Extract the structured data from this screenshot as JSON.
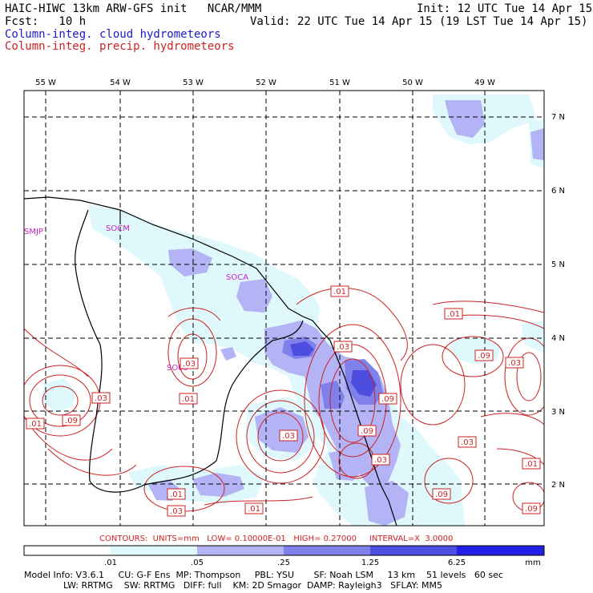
{
  "header": {
    "title": "HAIC-HIWC 13km ARW-GFS init   NCAR/MMM",
    "init": "Init: 12 UTC Tue 14 Apr 15",
    "fcst": "Fcst:   10 h",
    "valid": "Valid: 22 UTC Tue 14 Apr 15 (19 LST Tue 14 Apr 15)",
    "field1": "Column-integ. cloud hydrometeors",
    "field2": "Column-integ. precip. hydrometeors"
  },
  "colors": {
    "cloud": "#1a1acc",
    "precip": "#cc2222",
    "shade_01": "#dff8fc",
    "shade_05": "#b3b3f5",
    "shade_25": "#8080ea",
    "shade_125": "#4d4de0",
    "shade_625": "#2020e6"
  },
  "map": {
    "lon_labels": [
      "55 W",
      "54 W",
      "53 W",
      "52 W",
      "51 W",
      "50 W",
      "49 W"
    ],
    "lat_labels": [
      "7 N",
      "6 N",
      "5 N",
      "4 N",
      "3 N",
      "2 N"
    ],
    "stations": [
      "SMJP",
      "SOCM",
      "SOCA",
      "SO05"
    ],
    "contour_labels": [
      ".01",
      ".01",
      ".03",
      ".09",
      ".03",
      ".03",
      ".01",
      ".09",
      ".03",
      ".01",
      ".01",
      ".03",
      ".09",
      ".03",
      ".09",
      ".03",
      ".09",
      ".01",
      ".09"
    ]
  },
  "legend": {
    "contours": "CONTOURS:  UNITS=mm   LOW= 0.10000E-01   HIGH= 0.27000     INTERVAL=X  3.0000",
    "ticks": [
      ".01",
      ".05",
      ".25",
      "1.25",
      "6.25"
    ],
    "unit": "mm"
  },
  "footer": {
    "line1": "Model Info: V3.6.1     CU: G-F Ens  MP: Thompson     PBL: YSU       SF: Noah LSM     13 km    51 levels   60 sec",
    "line2": "              LW: RRTMG    SW: RRTMG   DIFF: full    KM: 2D Smagor  DAMP: Rayleigh3   SFLAY: MM5"
  }
}
